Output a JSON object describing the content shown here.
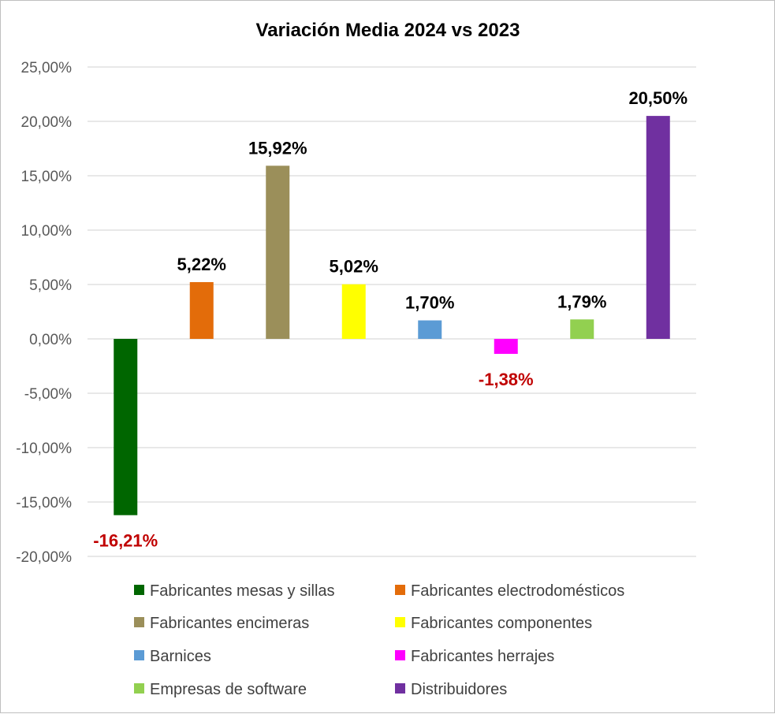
{
  "chart_data": {
    "type": "bar",
    "title": "Variación Media 2024 vs 2023",
    "xlabel": "",
    "ylabel": "",
    "ylim": [
      -20,
      25
    ],
    "y_tick_values": [
      25,
      20,
      15,
      10,
      5,
      0,
      -5,
      -10,
      -15,
      -20
    ],
    "y_tick_labels": [
      "25,00%",
      "20,00%",
      "15,00%",
      "10,00%",
      "5,00%",
      "0,00%",
      "-5,00%",
      "-10,00%",
      "-15,00%",
      "-20,00%"
    ],
    "grid": true,
    "legend_position": "bottom",
    "categories": [
      "Fabricantes mesas y sillas",
      "Fabricantes electrodomésticos",
      "Fabricantes encimeras",
      "Fabricantes componentes",
      "Barnices",
      "Fabricantes herrajes",
      "Empresas de software",
      "Distribuidores"
    ],
    "series": [
      {
        "name": "Fabricantes mesas y sillas",
        "value": -16.21,
        "label": "-16,21%",
        "color": "#006600"
      },
      {
        "name": "Fabricantes electrodomésticos",
        "value": 5.22,
        "label": "5,22%",
        "color": "#E36C0A"
      },
      {
        "name": "Fabricantes encimeras",
        "value": 15.92,
        "label": "15,92%",
        "color": "#9B8F5A"
      },
      {
        "name": "Fabricantes componentes",
        "value": 5.02,
        "label": "5,02%",
        "color": "#FFFF00"
      },
      {
        "name": "Barnices",
        "value": 1.7,
        "label": "1,70%",
        "color": "#5B9BD5"
      },
      {
        "name": "Fabricantes herrajes",
        "value": -1.38,
        "label": "-1,38%",
        "color": "#FF00FF"
      },
      {
        "name": "Empresas de software",
        "value": 1.79,
        "label": "1,79%",
        "color": "#92D050"
      },
      {
        "name": "Distribuidores",
        "value": 20.5,
        "label": "20,50%",
        "color": "#7030A0"
      }
    ],
    "positive_label_color": "#000000",
    "negative_label_color": "#C00000",
    "gridline_color": "#d9d9d9"
  }
}
